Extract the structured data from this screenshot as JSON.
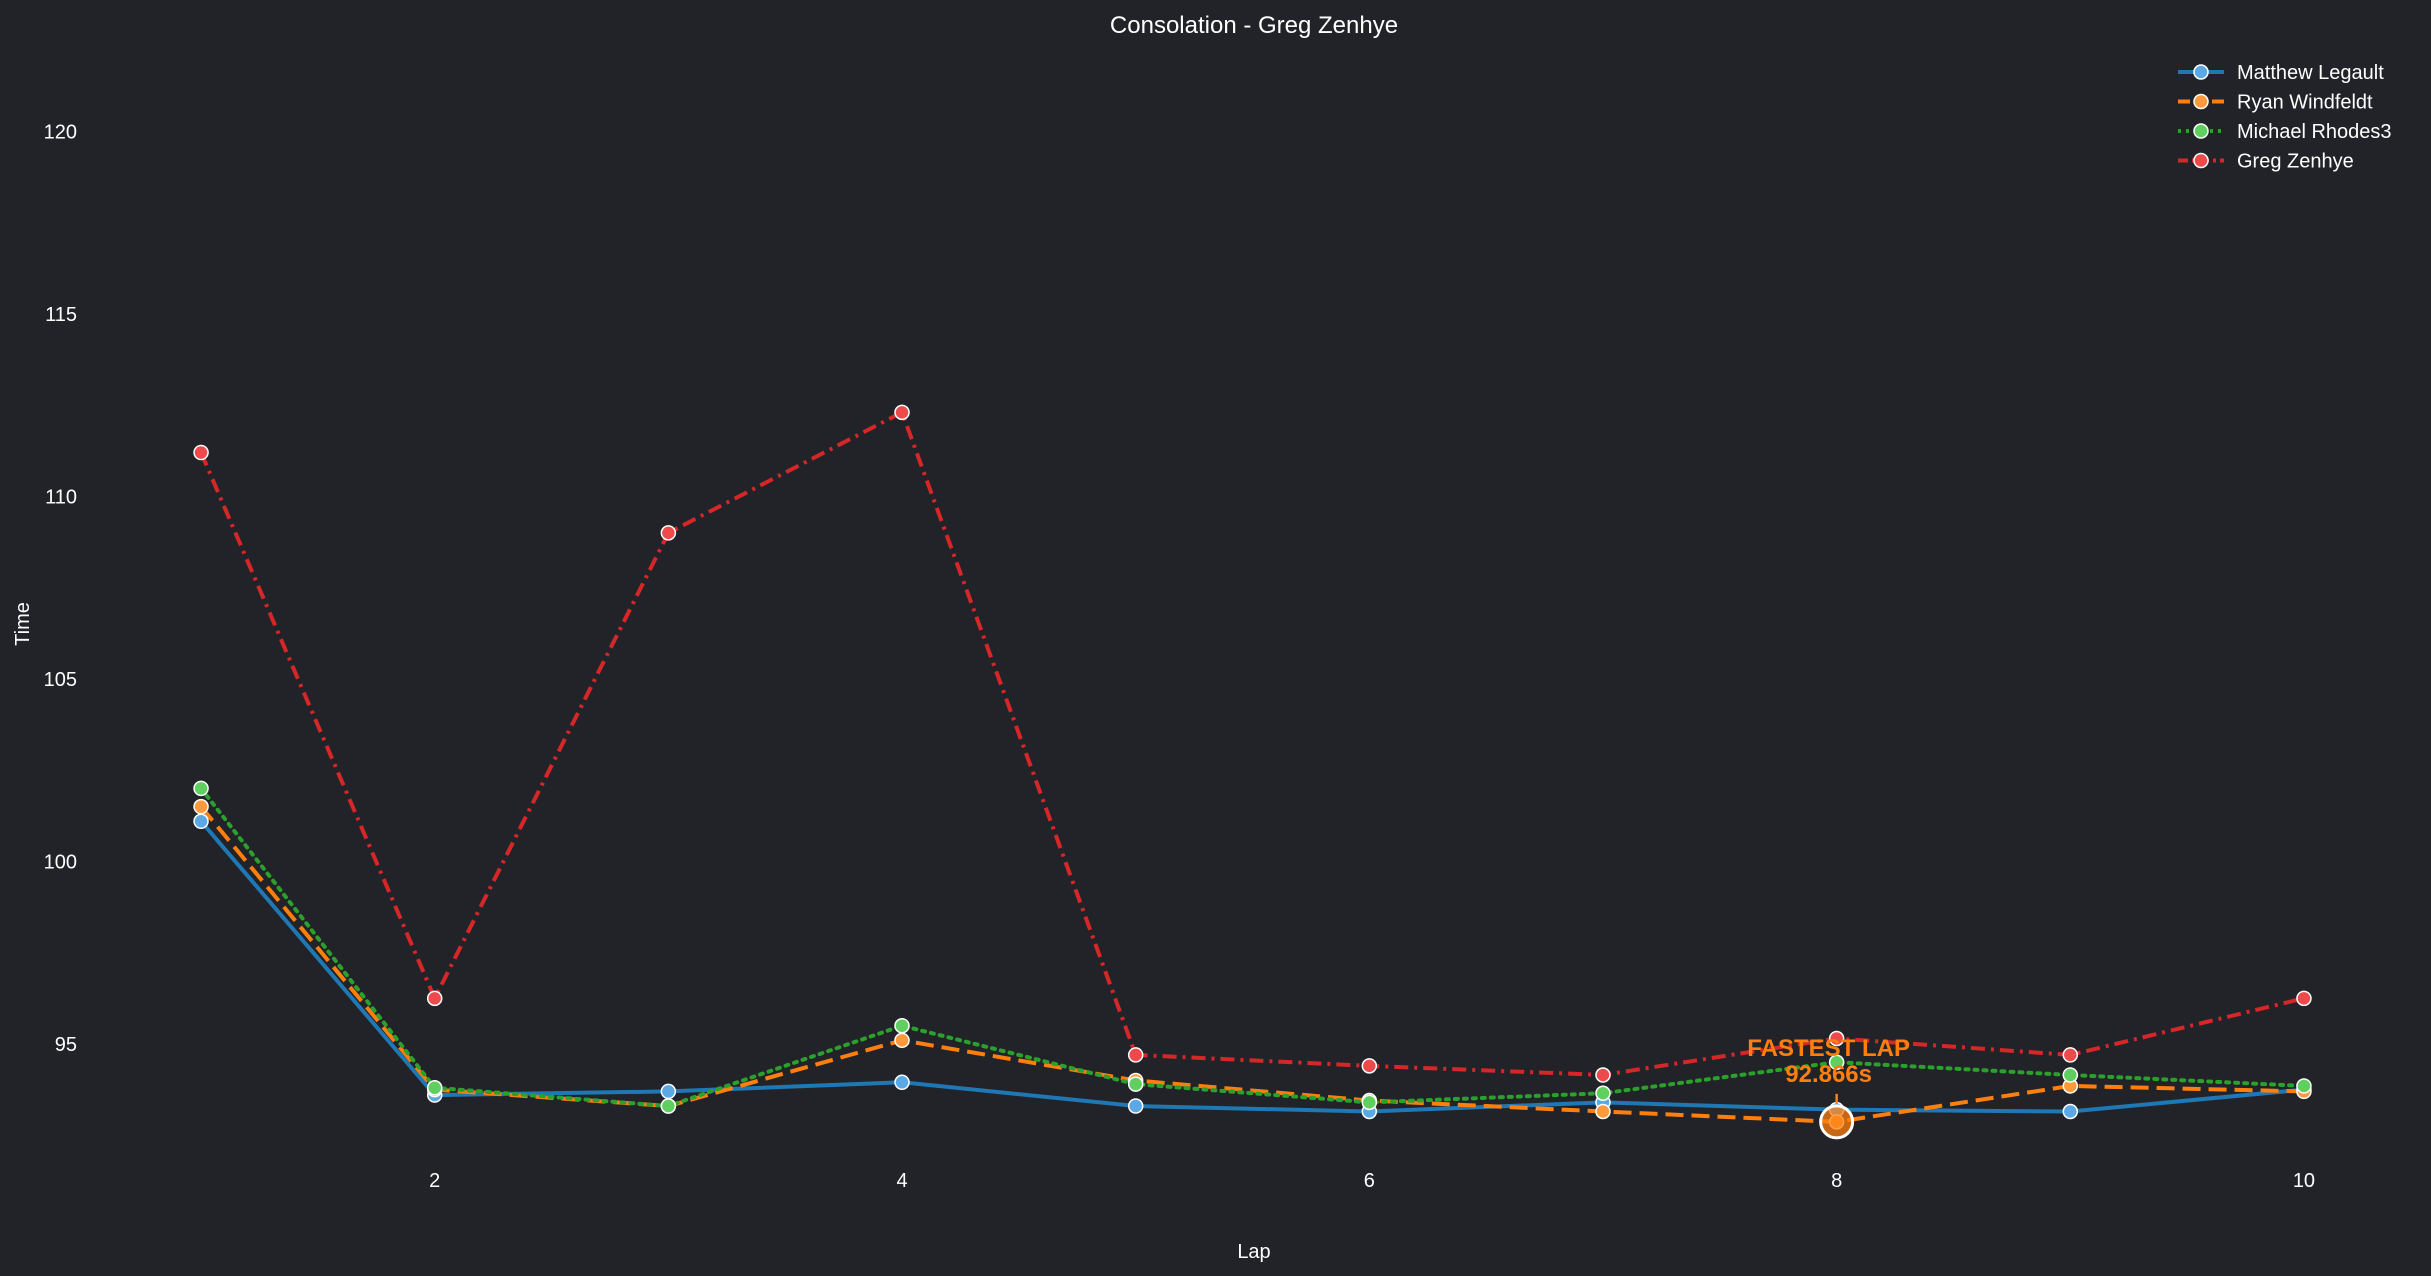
{
  "chart_data": {
    "type": "line",
    "title": "Consolation - Greg Zenhye",
    "xlabel": "Lap",
    "ylabel": "Time",
    "x": [
      1,
      2,
      3,
      4,
      5,
      6,
      7,
      8,
      9,
      10
    ],
    "xticks": [
      2,
      4,
      6,
      8,
      10
    ],
    "yticks": [
      95,
      100,
      105,
      110,
      115,
      120
    ],
    "xlim": [
      0.85,
      10.15
    ],
    "ylim": [
      91.0,
      122.5
    ],
    "grid": false,
    "legend_position": "top-right",
    "series": [
      {
        "name": "Matthew Legault",
        "color": "#1f77b4",
        "marker": "#5aa9e6",
        "dash": "solid",
        "values": [
          101.1,
          93.6,
          93.7,
          93.95,
          93.3,
          93.15,
          93.4,
          93.2,
          93.15,
          93.75
        ]
      },
      {
        "name": "Ryan Windfeldt",
        "color": "#ff7f0e",
        "marker": "#ff9a3c",
        "dash": "dashed",
        "values": [
          101.5,
          93.75,
          93.3,
          95.1,
          94.0,
          93.45,
          93.15,
          92.866,
          93.85,
          93.7
        ]
      },
      {
        "name": "Michael Rhodes3",
        "color": "#2ca02c",
        "marker": "#5fcf5f",
        "dash": "dotted",
        "values": [
          102.0,
          93.8,
          93.3,
          95.5,
          93.9,
          93.4,
          93.65,
          94.5,
          94.15,
          93.85
        ]
      },
      {
        "name": "Greg Zenhye",
        "color": "#d62728",
        "marker": "#ee4a4b",
        "dash": "dashdot",
        "values": [
          111.2,
          96.25,
          109.0,
          112.3,
          94.7,
          94.4,
          94.15,
          95.15,
          94.7,
          96.25
        ]
      }
    ],
    "annotation": {
      "label": "FASTEST LAP",
      "value_text": "92.866s",
      "x": 8,
      "y": 92.866,
      "color": "#ff7f0e"
    }
  }
}
